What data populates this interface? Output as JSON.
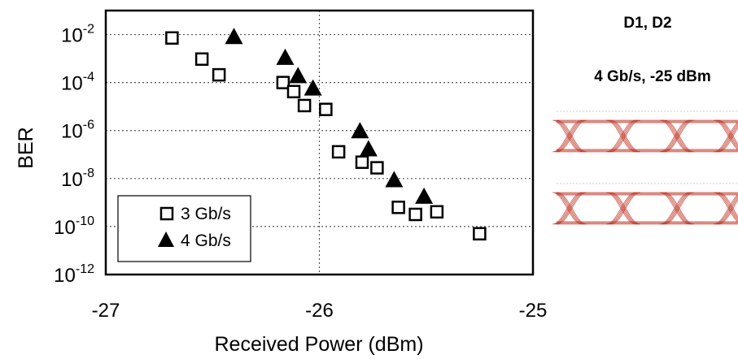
{
  "chart_data": {
    "type": "scatter",
    "xlabel": "Received Power (dBm)",
    "ylabel": "BER",
    "xlim": [
      -27,
      -25
    ],
    "ylim_log10": [
      -12,
      -1
    ],
    "y_scale": "log",
    "x_ticks": [
      {
        "value": -27,
        "label": "-27"
      },
      {
        "value": -26,
        "label": "-26"
      },
      {
        "value": -25,
        "label": "-25"
      }
    ],
    "y_ticks": [
      {
        "exp": -2,
        "base": "10",
        "sup": "-2"
      },
      {
        "exp": -4,
        "base": "10",
        "sup": "-4"
      },
      {
        "exp": -6,
        "base": "10",
        "sup": "-6"
      },
      {
        "exp": -8,
        "base": "10",
        "sup": "-8"
      },
      {
        "exp": -10,
        "base": "10",
        "sup": "-10"
      },
      {
        "exp": -12,
        "base": "10",
        "sup": "-12"
      }
    ],
    "grid": "dotted at -26 dBm and at 1e-2, 1e-4, 1e-6, 1e-8, 1e-10",
    "legend_position": "bottom-left",
    "series": [
      {
        "name": "3 Gb/s",
        "marker": "open-square",
        "points": [
          {
            "x": -26.69,
            "y": 0.0072
          },
          {
            "x": -26.55,
            "y": 0.00095
          },
          {
            "x": -26.47,
            "y": 0.00021
          },
          {
            "x": -26.17,
            "y": 0.0001
          },
          {
            "x": -26.12,
            "y": 4.2e-05
          },
          {
            "x": -26.07,
            "y": 1.1e-05
          },
          {
            "x": -25.97,
            "y": 7.6e-06
          },
          {
            "x": -25.91,
            "y": 1.3e-07
          },
          {
            "x": -25.8,
            "y": 4.8e-08
          },
          {
            "x": -25.73,
            "y": 2.8e-08
          },
          {
            "x": -25.63,
            "y": 6.3e-10
          },
          {
            "x": -25.55,
            "y": 3.2e-10
          },
          {
            "x": -25.45,
            "y": 4.1e-10
          },
          {
            "x": -25.25,
            "y": 5e-11
          }
        ]
      },
      {
        "name": "4 Gb/s",
        "marker": "filled-triangle",
        "points": [
          {
            "x": -26.4,
            "y": 0.0081
          },
          {
            "x": -26.16,
            "y": 0.0011
          },
          {
            "x": -26.1,
            "y": 0.00019
          },
          {
            "x": -26.03,
            "y": 5.8e-05
          },
          {
            "x": -25.81,
            "y": 9.6e-07
          },
          {
            "x": -25.77,
            "y": 1.7e-07
          },
          {
            "x": -25.65,
            "y": 8.8e-09
          },
          {
            "x": -25.51,
            "y": 1.8e-09
          }
        ]
      }
    ]
  },
  "annotations": {
    "devices": "D1, D2",
    "condition": "4 Gb/s, -25 dBm"
  },
  "eye_diagrams": [
    {
      "name": "eye-diagram-top",
      "color": "#c0392b"
    },
    {
      "name": "eye-diagram-bottom",
      "color": "#c0392b"
    }
  ],
  "colors": {
    "axis": "#000000",
    "grid": "#555555",
    "marker": "#000000"
  }
}
